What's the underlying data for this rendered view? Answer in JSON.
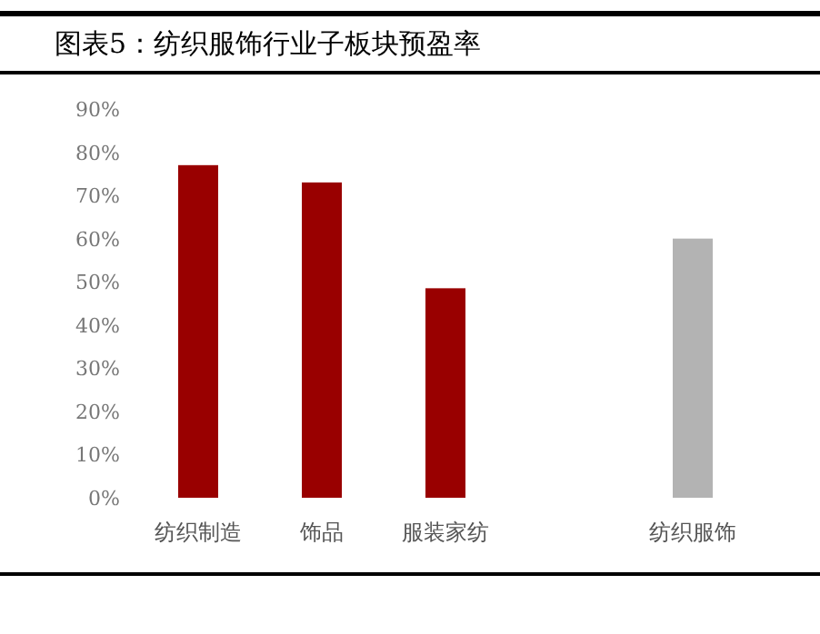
{
  "chart_data": {
    "type": "bar",
    "title": "图表5：纺织服饰行业子板块预盈率",
    "categories": [
      "纺织制造",
      "饰品",
      "服装家纺",
      null,
      "纺织服饰"
    ],
    "values": [
      77,
      73,
      48.5,
      null,
      60
    ],
    "colors": [
      "#990000",
      "#990000",
      "#990000",
      null,
      "#b3b3b3"
    ],
    "ylim": [
      0,
      90
    ],
    "yticks": [
      {
        "value": 0,
        "label": "0%"
      },
      {
        "value": 10,
        "label": "10%"
      },
      {
        "value": 20,
        "label": "20%"
      },
      {
        "value": 30,
        "label": "30%"
      },
      {
        "value": 40,
        "label": "40%"
      },
      {
        "value": 50,
        "label": "50%"
      },
      {
        "value": 60,
        "label": "60%"
      },
      {
        "value": 70,
        "label": "70%"
      },
      {
        "value": 80,
        "label": "80%"
      },
      {
        "value": 90,
        "label": "90%"
      }
    ]
  }
}
